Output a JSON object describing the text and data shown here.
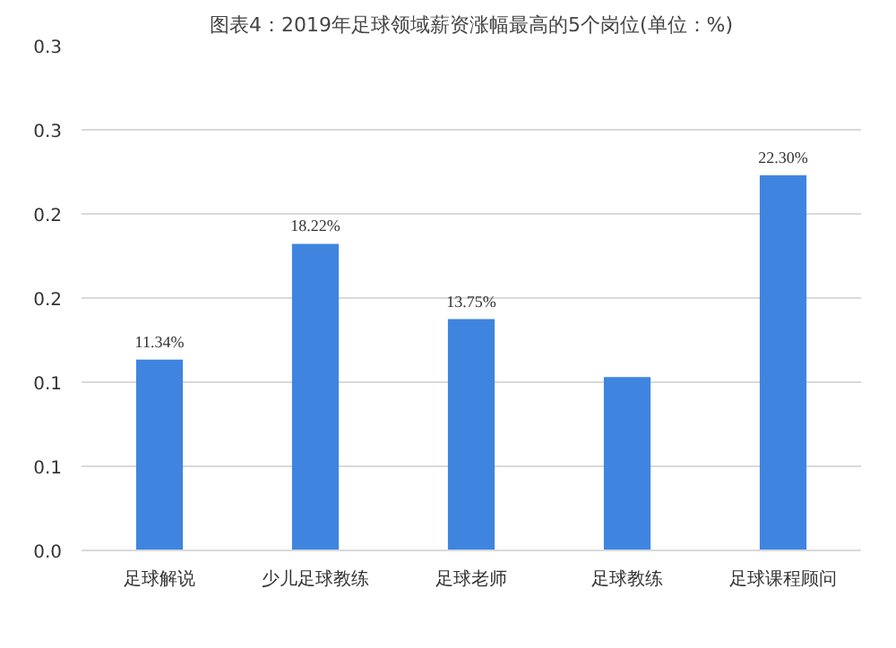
{
  "chart_data": {
    "type": "bar",
    "title": "图表4：2019年足球领域薪资涨幅最高的5个岗位(单位：%)",
    "categories": [
      "足球解说",
      "少儿足球教练",
      "足球老师",
      "足球教练",
      "足球课程顾问"
    ],
    "values": [
      0.1134,
      0.1822,
      0.1375,
      0.103,
      0.223
    ],
    "value_labels": [
      "11.34%",
      "18.22%",
      "13.75%",
      null,
      "22.30%"
    ],
    "color": "#3f85e0",
    "ylim": [
      0,
      0.3
    ],
    "yticks": [
      {
        "value": 0,
        "label": "0.0"
      },
      {
        "value": 0.05,
        "label": "0.1"
      },
      {
        "value": 0.1,
        "label": "0.1"
      },
      {
        "value": 0.15,
        "label": "0.2"
      },
      {
        "value": 0.2,
        "label": "0.2"
      },
      {
        "value": 0.25,
        "label": "0.3"
      },
      {
        "value": 0.3,
        "label": "0.3"
      }
    ],
    "grid": "y"
  }
}
